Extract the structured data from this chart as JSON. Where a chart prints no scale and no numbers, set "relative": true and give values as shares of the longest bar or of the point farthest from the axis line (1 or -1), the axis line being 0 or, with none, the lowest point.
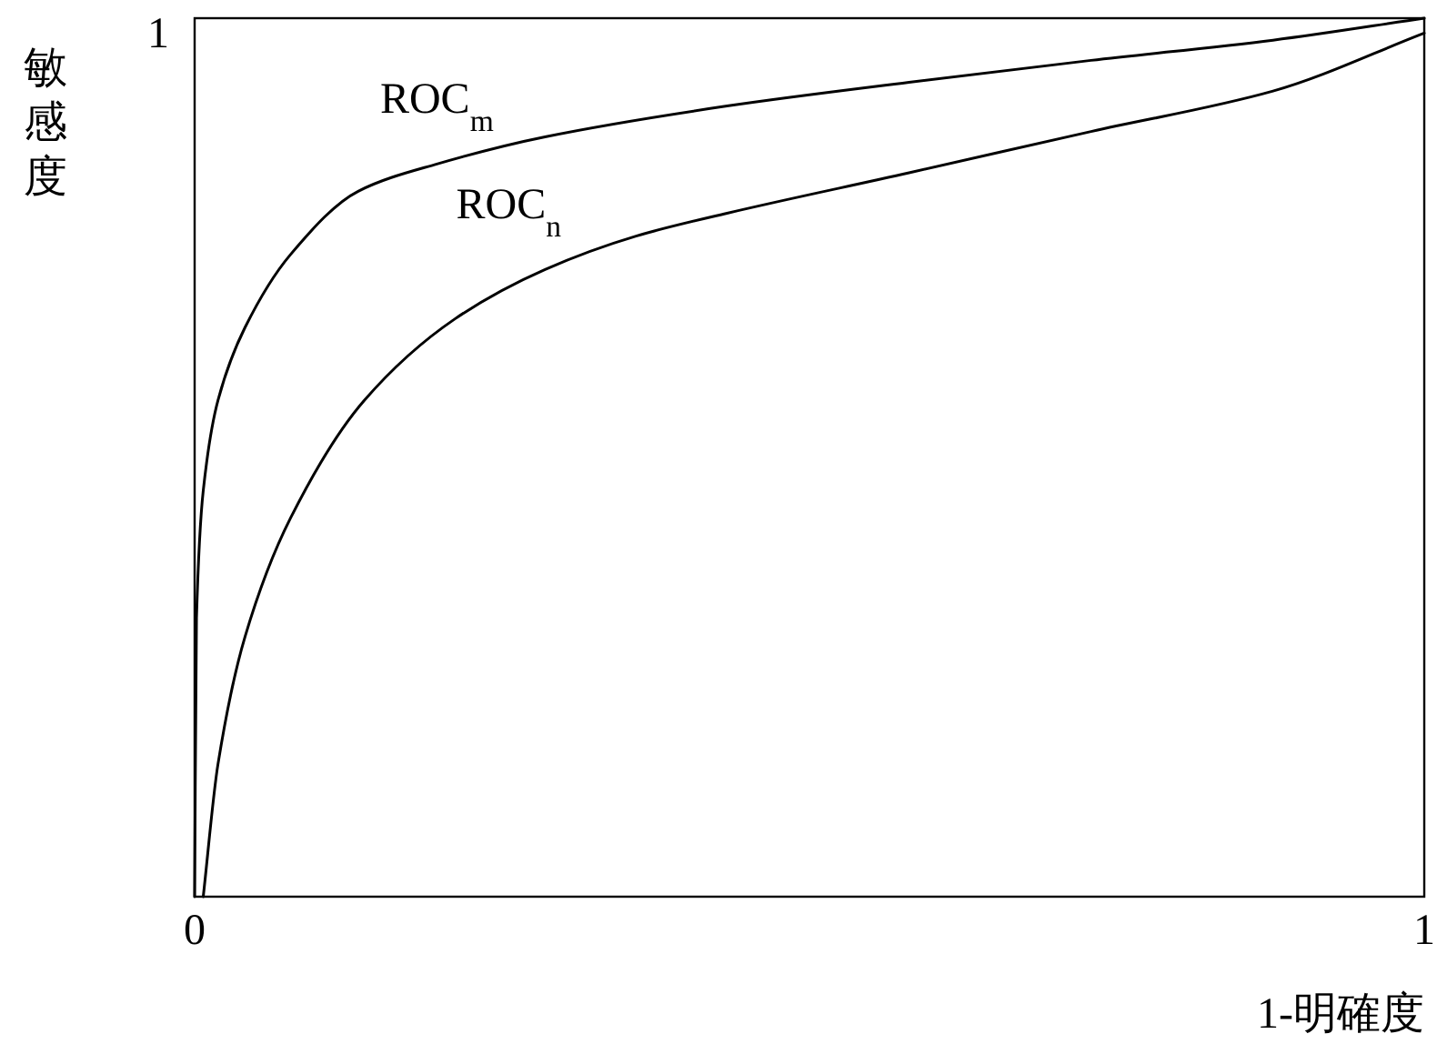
{
  "chart_data": {
    "type": "line",
    "xlabel": "1-明確度",
    "ylabel": "敏感度",
    "xlim": [
      0,
      1
    ],
    "xticks": [
      0,
      1
    ],
    "relative": true,
    "annotations": [
      "1"
    ],
    "legend": false,
    "marker": "none",
    "line_style": "solid",
    "series": [
      {
        "name": "ROC$_{m}$",
        "color": "#000000",
        "x": [
          0,
          0.0015,
          0.007,
          0.019,
          0.041,
          0.078,
          0.133,
          0.197,
          0.285,
          0.433,
          0.581,
          0.729,
          0.877,
          1
        ],
        "values": [
          0,
          0.317,
          0.462,
          0.565,
          0.648,
          0.731,
          0.803,
          0.834,
          0.865,
          0.9,
          0.927,
          0.952,
          0.975,
          1
        ]
      },
      {
        "name": "ROC$_{n}$",
        "color": "#000000",
        "x": [
          0.007,
          0.019,
          0.041,
          0.078,
          0.138,
          0.212,
          0.285,
          0.359,
          0.433,
          0.581,
          0.729,
          0.877,
          1
        ],
        "values": [
          0,
          0.151,
          0.296,
          0.431,
          0.565,
          0.658,
          0.714,
          0.752,
          0.778,
          0.824,
          0.871,
          0.917,
          0.983
        ]
      }
    ]
  }
}
